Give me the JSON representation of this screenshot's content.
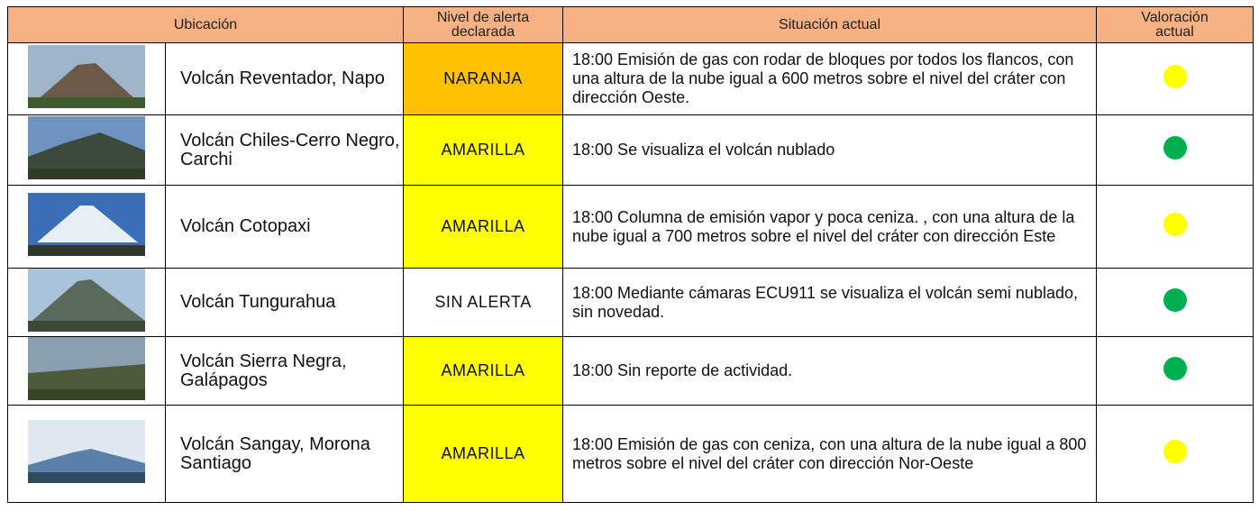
{
  "table": {
    "headers": [
      "Ubicación",
      "Nivel de alerta declarada",
      "Situación actual",
      "Valoración actual"
    ],
    "rows": [
      {
        "name": "Volcán Reventador, Napo",
        "alert": "NARANJA",
        "alert_color": "#ffc000",
        "situation": "18:00 Emisión de gas con rodar de bloques por todos los flancos, con una altura de la nube igual a 600 metros sobre el nivel del cráter con dirección Oeste.",
        "status_color": "#ffff00"
      },
      {
        "name": "Volcán Chiles-Cerro Negro, Carchi",
        "alert": "AMARILLA",
        "alert_color": "#ffff00",
        "situation": "18:00  Se visualiza el volcán nublado",
        "status_color": "#00b050"
      },
      {
        "name": "Volcán Cotopaxi",
        "alert": "AMARILLA",
        "alert_color": "#ffff00",
        "situation": "18:00 Columna de emisión vapor y poca ceniza. , con una altura de la nube igual a 700 metros sobre el nivel del cráter con dirección Este",
        "status_color": "#ffff00"
      },
      {
        "name": "Volcán Tungurahua",
        "alert": "SIN ALERTA",
        "alert_color": "#ffffff",
        "situation": "18:00 Mediante cámaras ECU911 se visualiza el volcán semi nublado, sin novedad.",
        "status_color": "#00b050"
      },
      {
        "name": "Volcán Sierra Negra, Galápagos",
        "alert": "AMARILLA",
        "alert_color": "#ffff00",
        "situation": "18:00 Sin reporte de actividad.",
        "status_color": "#00b050"
      },
      {
        "name": "Volcán Sangay, Morona Santiago",
        "alert": "AMARILLA",
        "alert_color": "#ffff00",
        "situation": "18:00 Emisión de gas con ceniza, con una altura de la nube igual a 800 metros sobre el nivel del cráter con dirección Nor-Oeste",
        "status_color": "#ffff00"
      }
    ]
  }
}
